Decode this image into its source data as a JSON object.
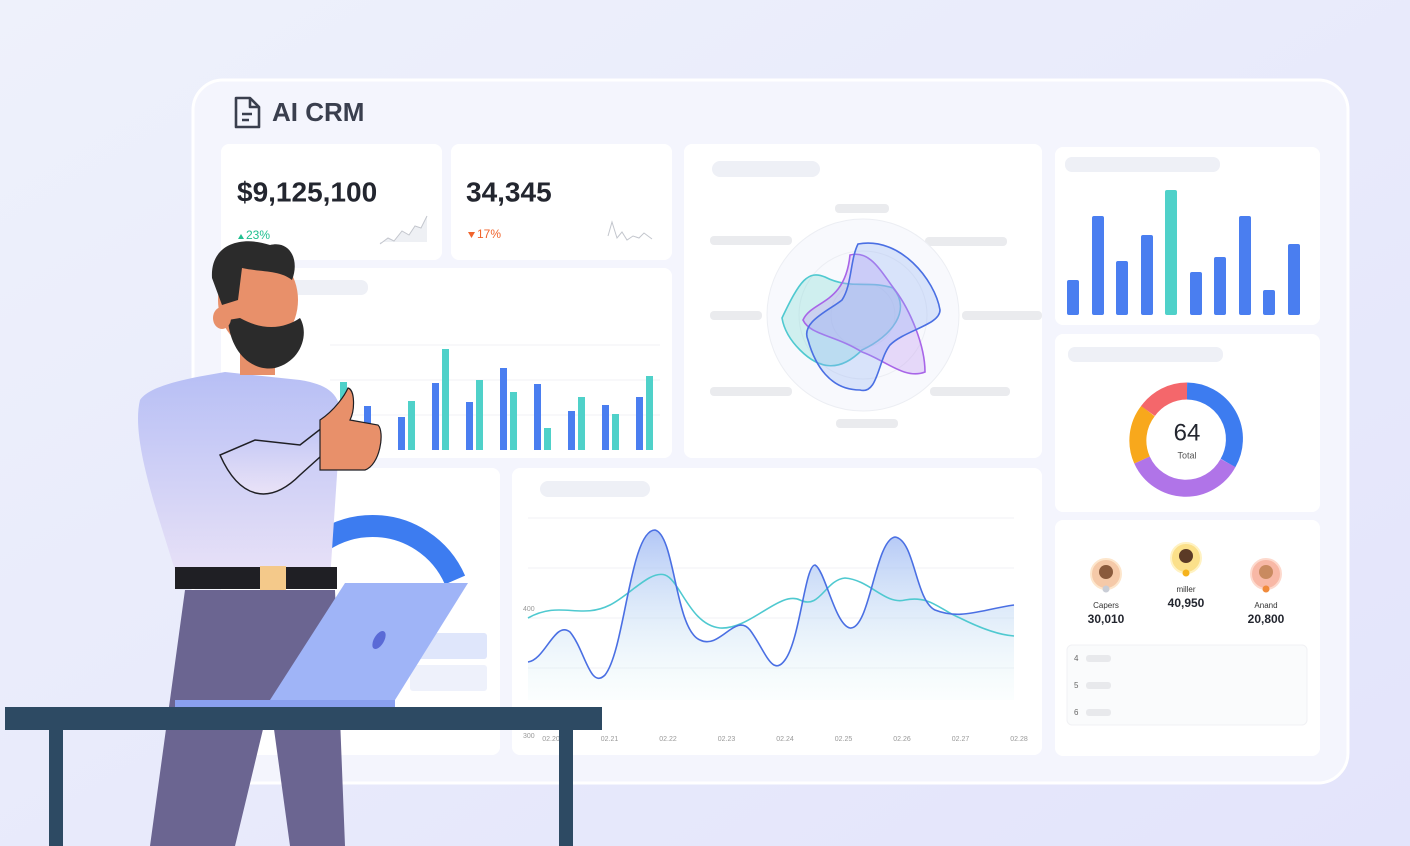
{
  "header": {
    "title": "AI CRM"
  },
  "kpis": [
    {
      "value": "$9,125,100",
      "change": "23%"
    },
    {
      "value": "34,345",
      "change": "17%"
    }
  ],
  "line_panel": {
    "y_labels": [
      "400",
      "300"
    ],
    "x_labels": [
      "02.20",
      "02.21",
      "02.22",
      "02.23",
      "02.24",
      "02.25",
      "02.26",
      "02.27",
      "02.28"
    ]
  },
  "donut": {
    "value": "64",
    "label": "Total"
  },
  "leaders": [
    {
      "name": "Capers",
      "score": "30,010"
    },
    {
      "name": "miller",
      "score": "40,950"
    },
    {
      "name": "Anand",
      "score": "20,800"
    }
  ],
  "ranks": [
    "4",
    "5",
    "6"
  ]
}
